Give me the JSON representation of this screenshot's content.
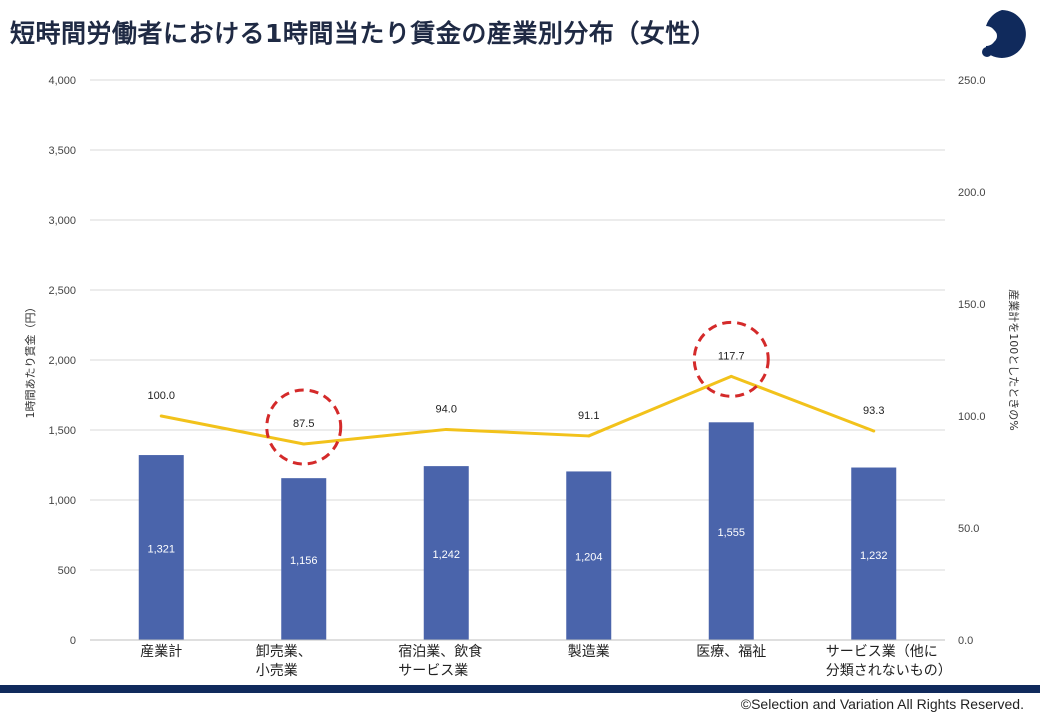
{
  "page": {
    "title": "短時間労働者における1時間当たり賃金の産業別分布（女性）",
    "copyright": "©Selection and Variation All Rights Reserved."
  },
  "chart_data": {
    "type": "bar",
    "categories": [
      [
        "産業計"
      ],
      [
        "卸売業、",
        "小売業"
      ],
      [
        "宿泊業、飲食",
        "サービス業"
      ],
      [
        "製造業"
      ],
      [
        "医療、福祉"
      ],
      [
        "サービス業（他に",
        "分類されないもの）"
      ]
    ],
    "series": [
      {
        "name": "1時間あたり賃金（円）",
        "type": "bar",
        "axis": "left",
        "values": [
          1321,
          1156,
          1242,
          1204,
          1555,
          1232
        ],
        "labels": [
          "1,321",
          "1,156",
          "1,242",
          "1,204",
          "1,555",
          "1,232"
        ],
        "color": "#4a64ab"
      },
      {
        "name": "産業計を100としたときの%",
        "type": "line",
        "axis": "right",
        "values": [
          100.0,
          87.5,
          94.0,
          91.1,
          117.7,
          93.3
        ],
        "labels": [
          "100.0",
          "87.5",
          "94.0",
          "91.1",
          "117.7",
          "93.3"
        ],
        "color": "#f2c21b"
      }
    ],
    "ylabel": "1時間あたり賃金（円）",
    "y2label": "産業計を100としたときの%",
    "ylim": [
      0,
      4000
    ],
    "y2lim": [
      0,
      250
    ],
    "yticks": [
      0,
      500,
      1000,
      1500,
      2000,
      2500,
      3000,
      3500,
      4000
    ],
    "ytick_labels": [
      "0",
      "500",
      "1,000",
      "1,500",
      "2,000",
      "2,500",
      "3,000",
      "3,500",
      "4,000"
    ],
    "y2ticks": [
      0,
      50,
      100,
      150,
      200,
      250
    ],
    "y2tick_labels": [
      "0.0",
      "50.0",
      "100.0",
      "150.0",
      "200.0",
      "250.0"
    ],
    "grid": true,
    "highlight_circles": [
      1,
      4
    ],
    "highlight_color": "#d42a2a"
  },
  "colors": {
    "title": "#1f2a44",
    "footer_bar": "#102a5c",
    "grid": "#d9d9d9",
    "logo": "#102a5c"
  }
}
